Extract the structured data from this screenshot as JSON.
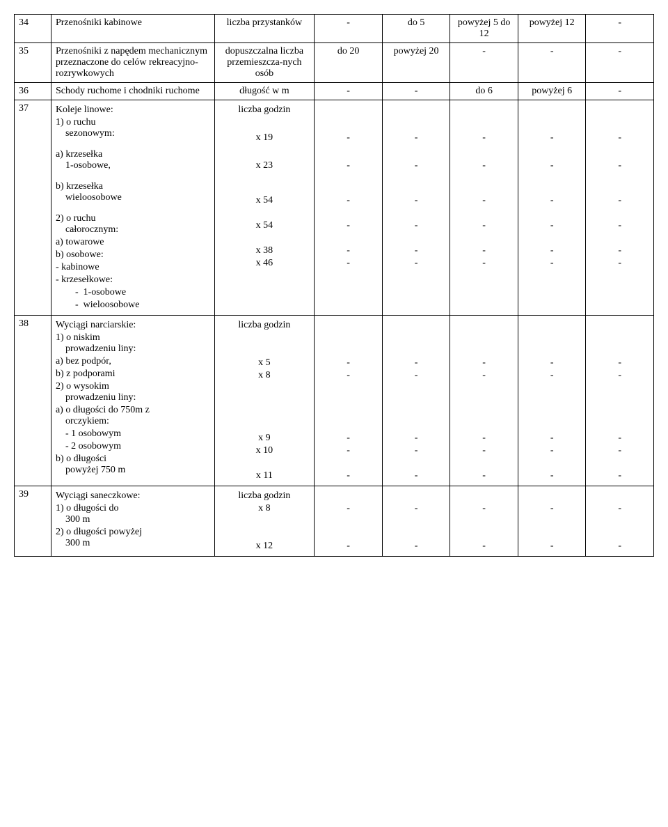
{
  "rows": {
    "r34": {
      "num": "34",
      "desc": "Przenośniki kabinowe",
      "param": "liczba przystanków",
      "c1": "-",
      "c2": "do 5",
      "c3": "powyżej 5 do 12",
      "c4": "powyżej 12",
      "c5": "-"
    },
    "r35": {
      "num": "35",
      "desc": "Przenośniki z napędem mechanicznym przeznaczone do celów rekreacyjno-rozrywkowych",
      "param": "dopuszczalna liczba przemieszcza-nych osób",
      "c1": "do 20",
      "c2": "powyżej 20",
      "c3": "-",
      "c4": "-",
      "c5": "-"
    },
    "r36": {
      "num": "36",
      "desc": "Schody ruchome i chodniki ruchome",
      "param": "długość w m",
      "c1": "-",
      "c2": "-",
      "c3": "do 6",
      "c4": "powyżej 6",
      "c5": "-"
    },
    "r37": {
      "num": "37",
      "d1": "Koleje linowe:",
      "d2": "1) o ruchu sezonowym:",
      "p1": "liczba godzin",
      "d3": "a) krzesełka 1-osobowe,",
      "p3": "x 19",
      "v3": "-",
      "d4": "b) krzesełka wieloosobowe",
      "p4": "x 23",
      "v4": "-",
      "d5": "2) o ruchu całorocznym:",
      "d6": "a) towarowe",
      "p6": "x 54",
      "v6": "-",
      "d7": "b) osobowe:",
      "d8": "- kabinowe",
      "p8": "x 54",
      "v8": "-",
      "d9": "- krzesełkowe:",
      "d10a": "- 1-osobowe",
      "p10a": "x 38",
      "v10a": "-",
      "d10b": "- wieloosobowe",
      "p10b": "x 46",
      "v10b": "-"
    },
    "r38": {
      "num": "38",
      "d1": "Wyciągi narciarskie:",
      "p1": "liczba godzin",
      "d2": "1) o niskim prowadzeniu liny:",
      "d3a": "a) bez podpór,",
      "p3a": "x 5",
      "v3a": "-",
      "d3b": "b) z podporami",
      "p3b": "x 8",
      "v3b": "-",
      "d4": "2) o wysokim prowadzeniu liny:",
      "d5": "a) o długości do 750m z orczykiem:",
      "d6a": "- 1 osobowym",
      "p6a": "x 9",
      "v6a": "-",
      "d6b": "- 2 osobowym",
      "p6b": "x 10",
      "v6b": "-",
      "d7": "b) o długości powyżej 750 m",
      "p7": "x 11",
      "v7": "-"
    },
    "r39": {
      "num": "39",
      "d1": "Wyciągi saneczkowe:",
      "p1": "liczba godzin",
      "d2": "1) o długości do 300 m",
      "p2": "x 8",
      "v2": "-",
      "d3": "2) o długości powyżej 300 m",
      "p3": "x 12",
      "v3": "-"
    }
  }
}
